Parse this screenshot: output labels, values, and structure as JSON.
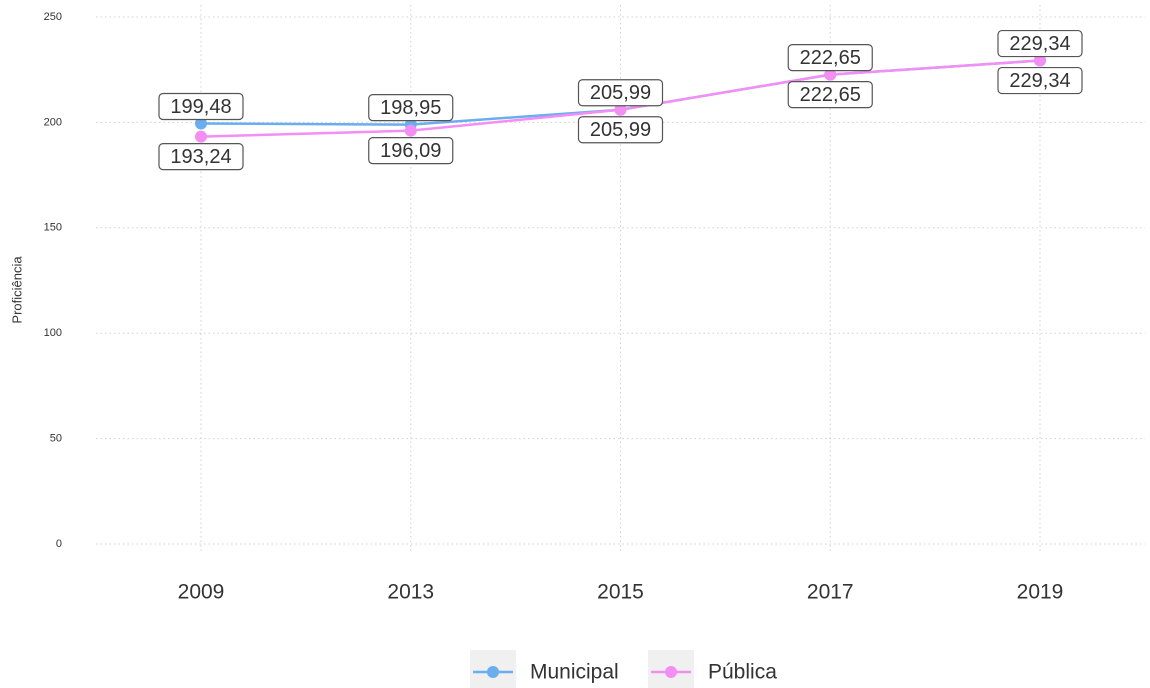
{
  "chart_data": {
    "type": "line",
    "y_label": "Proficiência",
    "categories": [
      "2009",
      "2013",
      "2015",
      "2017",
      "2019"
    ],
    "series": [
      {
        "name": "Municipal",
        "color": "#6aaef0",
        "values": [
          199.48,
          198.95,
          205.99,
          222.65,
          229.34
        ],
        "value_labels": [
          "199,48",
          "198,95",
          "205,99",
          "222,65",
          "229,34"
        ]
      },
      {
        "name": "Pública",
        "color": "#f38ef5",
        "values": [
          193.24,
          196.09,
          205.99,
          222.65,
          229.34
        ],
        "value_labels": [
          "193,24",
          "196,09",
          "205,99",
          "222,65",
          "229,34"
        ]
      }
    ],
    "ylim": [
      0,
      250
    ],
    "yticks": [
      0,
      50,
      100,
      150,
      200,
      250
    ],
    "grid": true,
    "legend": "bottom"
  }
}
